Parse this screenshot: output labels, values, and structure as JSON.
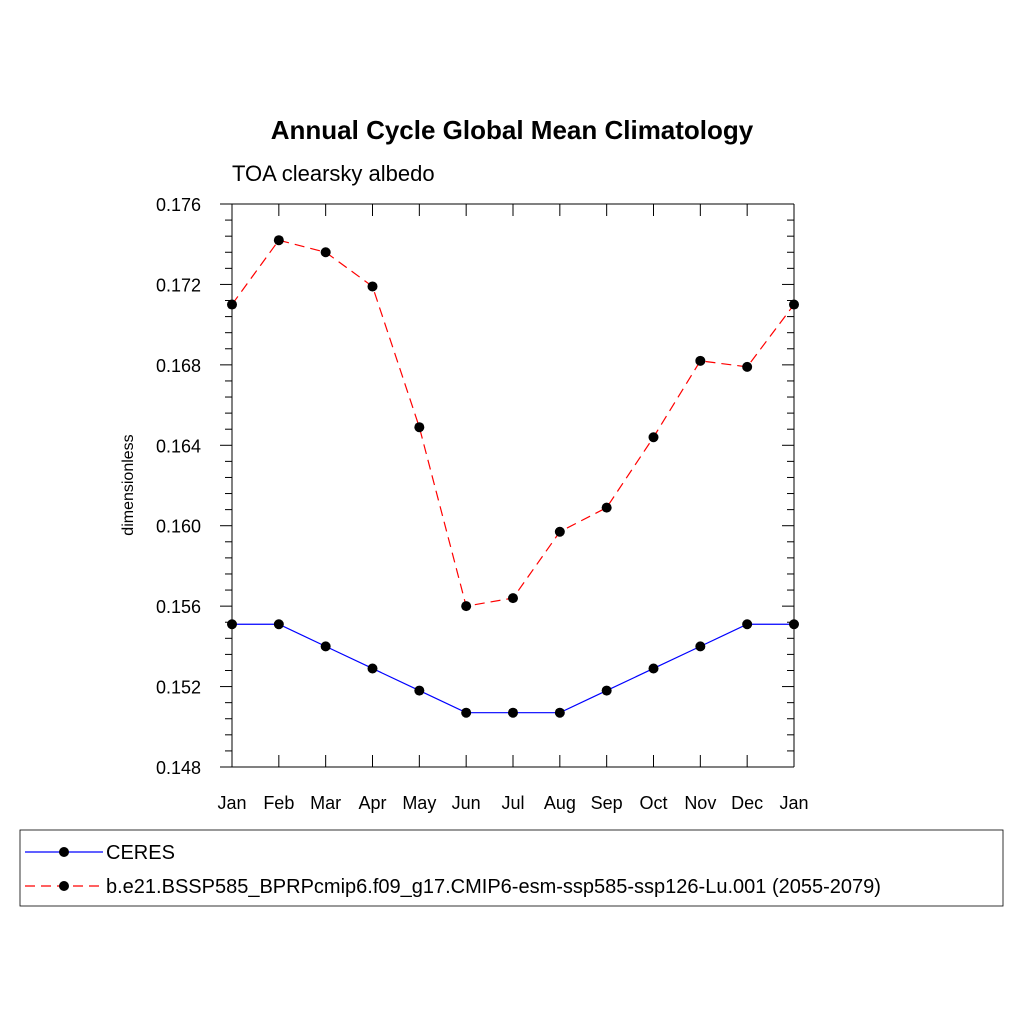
{
  "chart_data": {
    "type": "line",
    "title": "Annual Cycle Global Mean Climatology",
    "subtitle": "TOA clearsky albedo",
    "xlabel": "",
    "ylabel": "dimensionless",
    "categories": [
      "Jan",
      "Feb",
      "Mar",
      "Apr",
      "May",
      "Jun",
      "Jul",
      "Aug",
      "Sep",
      "Oct",
      "Nov",
      "Dec",
      "Jan"
    ],
    "ylim": [
      0.148,
      0.176
    ],
    "yticks": [
      0.148,
      0.152,
      0.156,
      0.16,
      0.164,
      0.168,
      0.172,
      0.176
    ],
    "ytick_labels": [
      "0.148",
      "0.152",
      "0.156",
      "0.160",
      "0.164",
      "0.168",
      "0.172",
      "0.176"
    ],
    "grid": false,
    "legend_position": "bottom",
    "series": [
      {
        "name": "CERES",
        "color": "#0000ff",
        "line_style": "solid",
        "marker": "filled-circle",
        "values": [
          0.1551,
          0.1551,
          0.154,
          0.1529,
          0.1518,
          0.1507,
          0.1507,
          0.1507,
          0.1518,
          0.1529,
          0.154,
          0.1551,
          0.1551
        ]
      },
      {
        "name": "b.e21.BSSP585_BPRPcmip6.f09_g17.CMIP6-esm-ssp585-ssp126-Lu.001 (2055-2079)",
        "color": "#ff0000",
        "line_style": "dashed",
        "marker": "filled-circle",
        "values": [
          0.171,
          0.1742,
          0.1736,
          0.1719,
          0.1649,
          0.156,
          0.1564,
          0.1597,
          0.1609,
          0.1644,
          0.1682,
          0.1679,
          0.171
        ]
      }
    ]
  }
}
